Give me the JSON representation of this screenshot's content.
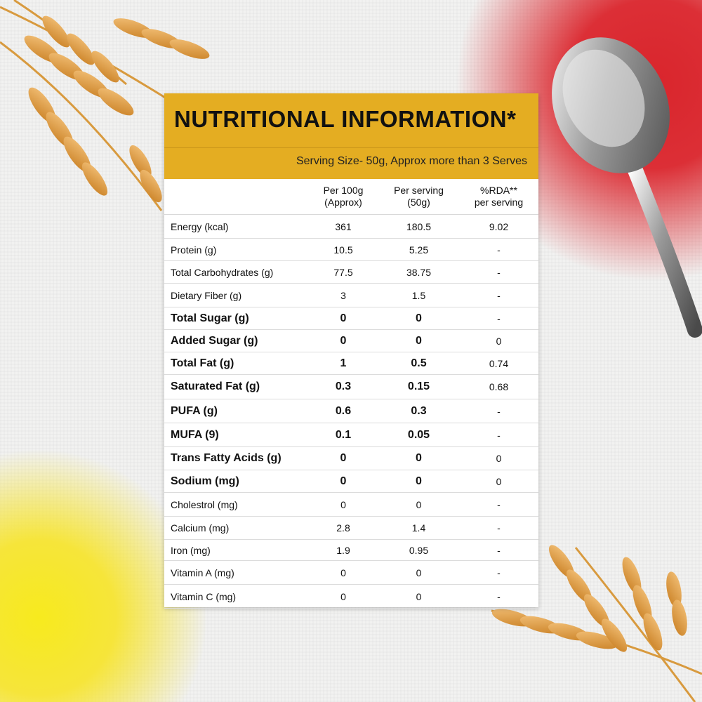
{
  "panel": {
    "title": "NUTRITIONAL INFORMATION*",
    "serving_size": "Serving Size- 50g, Approx more than 3 Serves"
  },
  "table": {
    "headers": {
      "col1": "Per 100g",
      "col1_sub": "(Approx)",
      "col2": "Per serving",
      "col2_sub": "(50g)",
      "col3": "%RDA**",
      "col3_sub": "per serving"
    },
    "rows": [
      {
        "name": "Energy (kcal)",
        "per100": "361",
        "perServing": "180.5",
        "rda": "9.02",
        "bold": false
      },
      {
        "name": "Protein (g)",
        "per100": "10.5",
        "perServing": "5.25",
        "rda": "-",
        "bold": false
      },
      {
        "name": "Total Carbohydrates (g)",
        "per100": "77.5",
        "perServing": "38.75",
        "rda": "-",
        "bold": false
      },
      {
        "name": "Dietary Fiber (g)",
        "per100": "3",
        "perServing": "1.5",
        "rda": "-",
        "bold": false
      },
      {
        "name": "Total Sugar (g)",
        "per100": "0",
        "perServing": "0",
        "rda": "-",
        "bold": true
      },
      {
        "name": "Added Sugar (g)",
        "per100": "0",
        "perServing": "0",
        "rda": "0",
        "bold": true
      },
      {
        "name": "Total Fat (g)",
        "per100": "1",
        "perServing": "0.5",
        "rda": "0.74",
        "bold": true
      },
      {
        "name": "Saturated Fat (g)",
        "per100": "0.3",
        "perServing": "0.15",
        "rda": "0.68",
        "bold": true
      },
      {
        "name": "PUFA (g)",
        "per100": "0.6",
        "perServing": "0.3",
        "rda": "-",
        "bold": true
      },
      {
        "name": "MUFA (9)",
        "per100": "0.1",
        "perServing": "0.05",
        "rda": "-",
        "bold": true
      },
      {
        "name": "Trans Fatty Acids (g)",
        "per100": "0",
        "perServing": "0",
        "rda": "0",
        "bold": true
      },
      {
        "name": "Sodium (mg)",
        "per100": "0",
        "perServing": "0",
        "rda": "0",
        "bold": true
      },
      {
        "name": "Cholestrol (mg)",
        "per100": "0",
        "perServing": "0",
        "rda": "-",
        "bold": false
      },
      {
        "name": "Calcium (mg)",
        "per100": "2.8",
        "perServing": "1.4",
        "rda": "-",
        "bold": false
      },
      {
        "name": "Iron (mg)",
        "per100": "1.9",
        "perServing": "0.95",
        "rda": "-",
        "bold": false
      },
      {
        "name": "Vitamin A (mg)",
        "per100": "0",
        "perServing": "0",
        "rda": "-",
        "bold": false
      },
      {
        "name": "Vitamin C (mg)",
        "per100": "0",
        "perServing": "0",
        "rda": "-",
        "bold": false
      }
    ]
  },
  "colors": {
    "header_band": "#e4ad22",
    "wheat": "#e6a44a",
    "red_powder": "#d9252c",
    "yellow_powder": "#f7ea1e"
  },
  "decor": {
    "top_left": "wheat-icon",
    "bottom_right": "wheat-icon",
    "top_right": "spoon-icon"
  }
}
